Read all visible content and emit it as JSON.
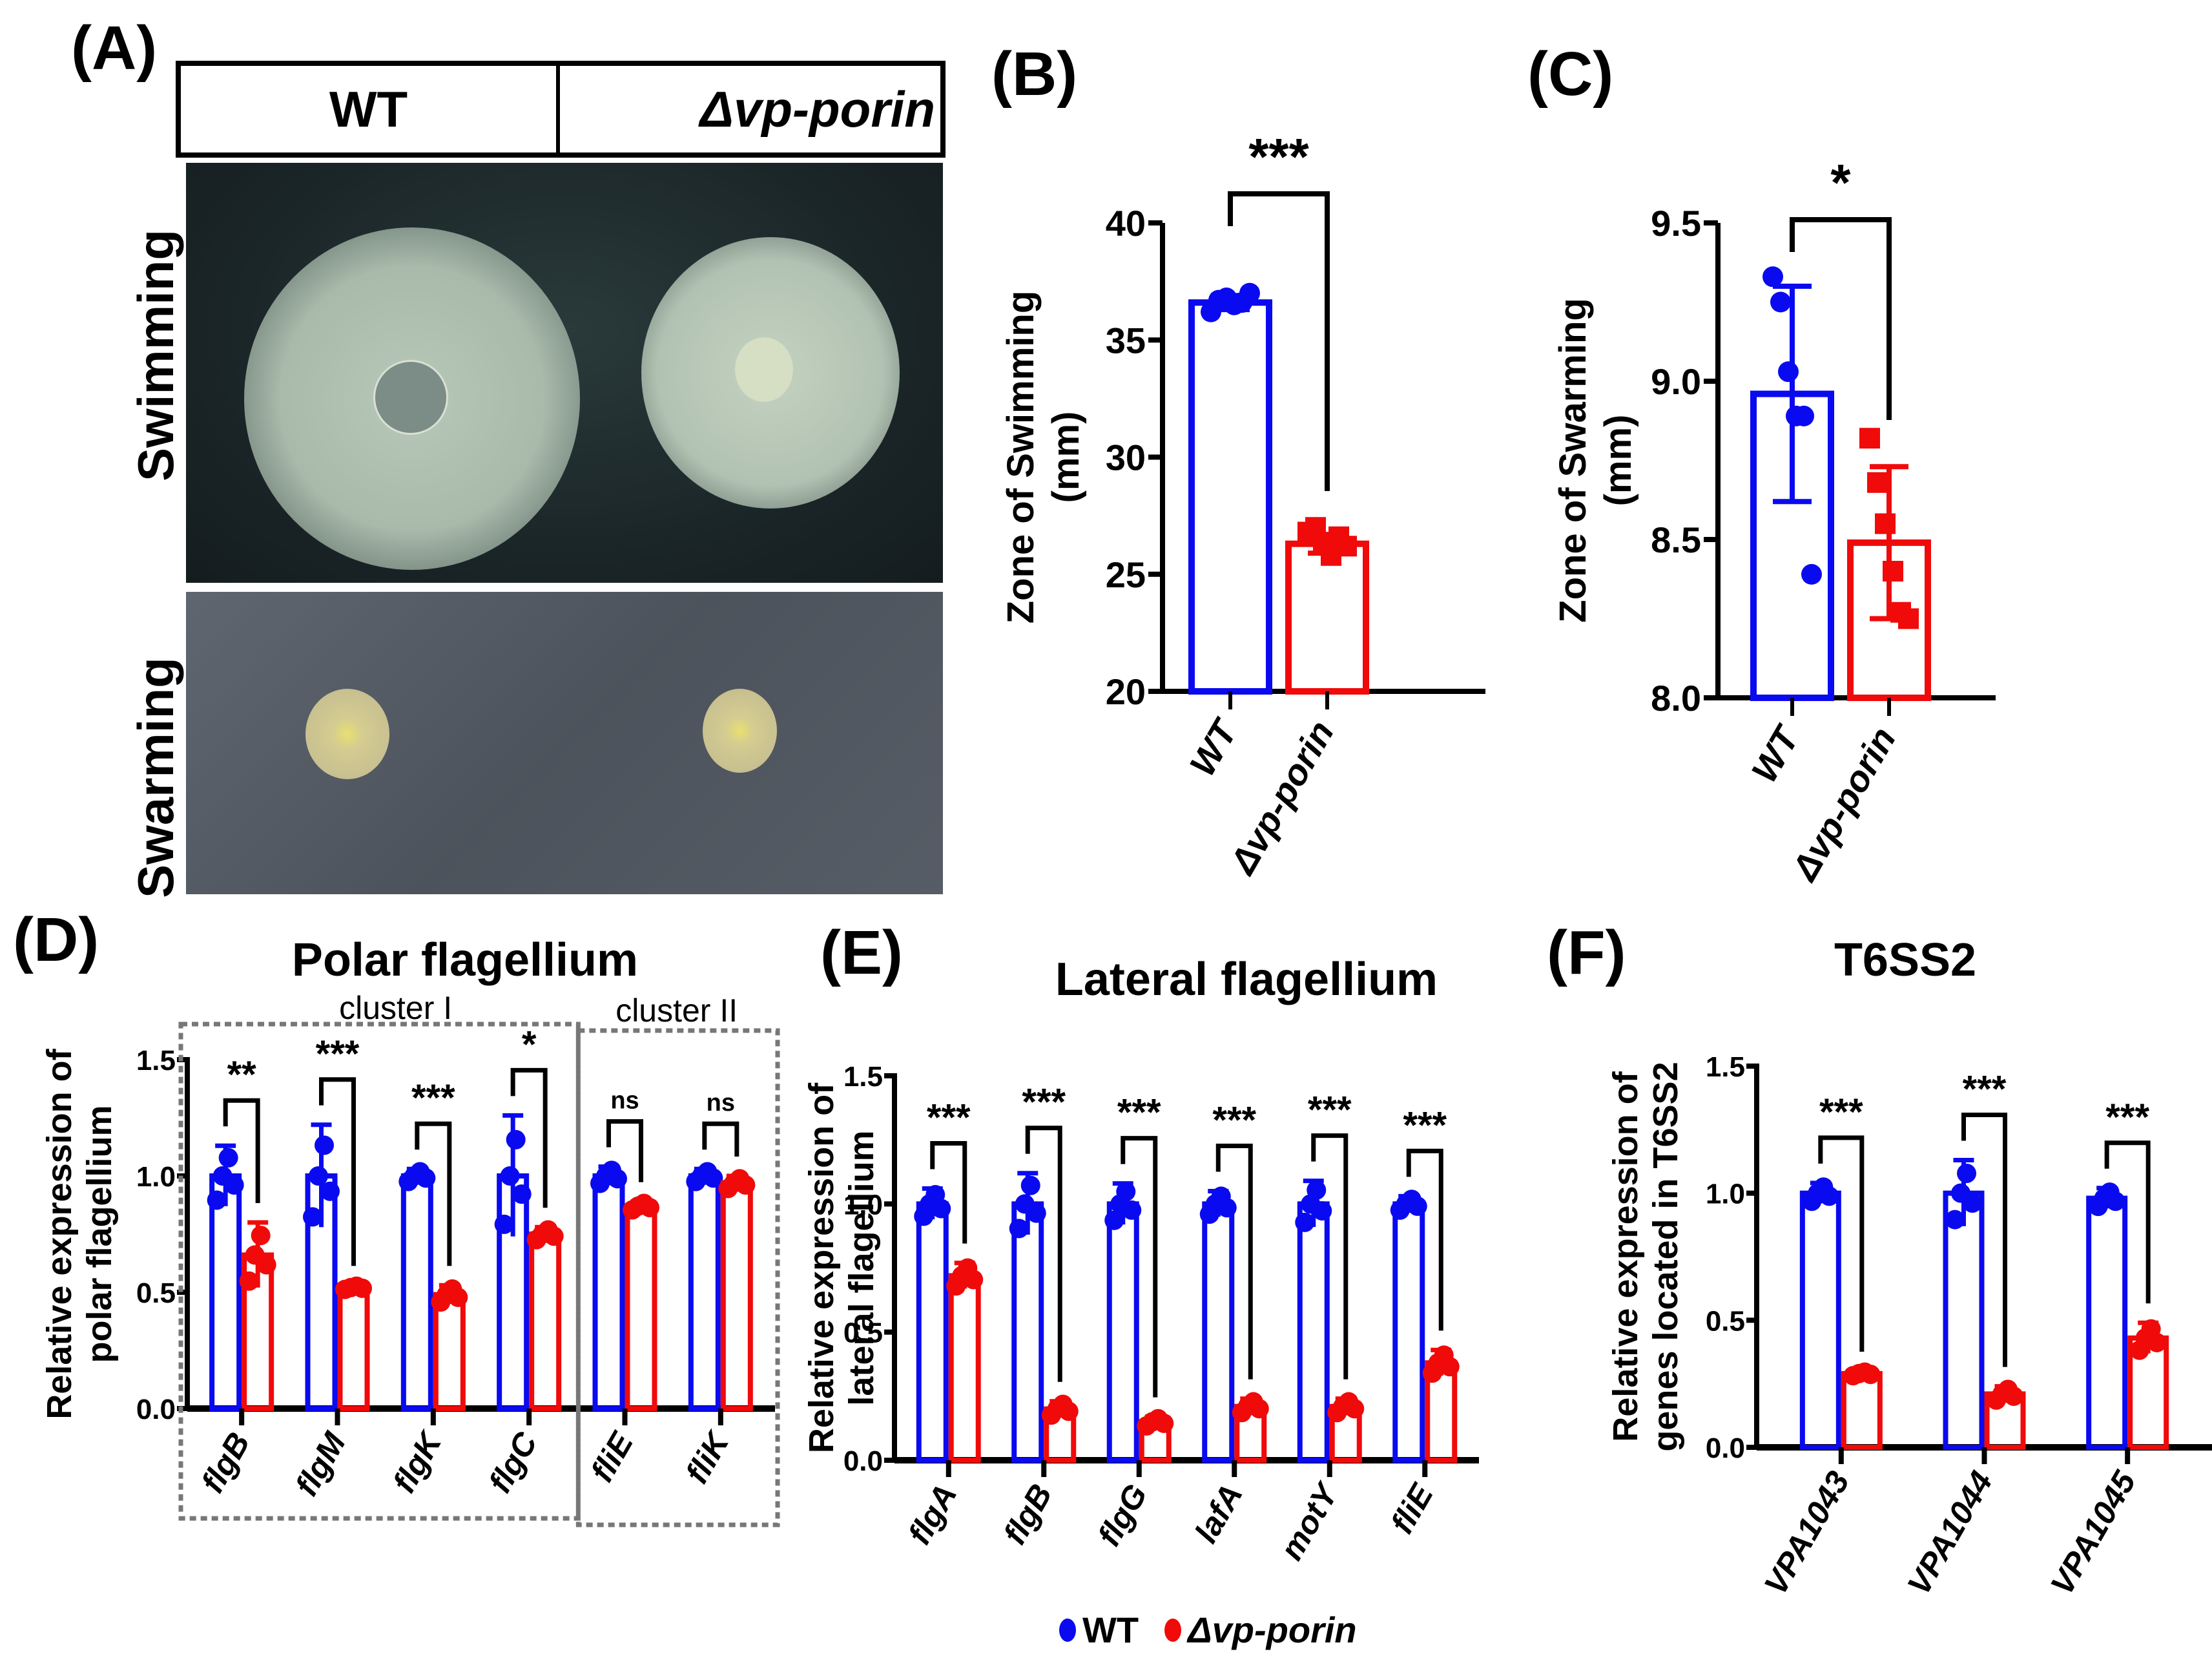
{
  "figure": {
    "colors": {
      "wt": "#0a0af0",
      "mutant": "#f00a0a",
      "axis": "#000000",
      "cluster_box": "#777777"
    },
    "legend": {
      "wt_label": "WT",
      "mutant_label": "Δvp-porin"
    }
  },
  "panel_a": {
    "label": "(A)",
    "columns": [
      "WT",
      "Δvp-porin"
    ],
    "rows": [
      "Swimming",
      "Swarming"
    ]
  },
  "panel_b": {
    "label": "(B)"
  },
  "panel_c": {
    "label": "(C)"
  },
  "panel_d": {
    "label": "(D)",
    "cluster_labels": [
      "cluster I",
      "cluster II"
    ]
  },
  "panel_e": {
    "label": "(E)"
  },
  "panel_f": {
    "label": "(F)"
  },
  "chart_data": [
    {
      "panel": "B",
      "type": "bar",
      "title": "",
      "categories": [
        "WT",
        "Δvp-porin"
      ],
      "series": [
        {
          "name": "Zone of Swimming",
          "values": [
            36.6,
            26.3
          ],
          "sd": [
            0.3,
            0.4
          ],
          "colors": [
            "#0a0af0",
            "#f00a0a"
          ]
        }
      ],
      "points": [
        [
          36.2,
          36.7,
          36.8,
          36.5,
          36.6,
          37.0
        ],
        [
          26.8,
          27.0,
          26.3,
          25.8,
          26.6,
          26.2
        ]
      ],
      "xlabel": "",
      "ylabel": "Zone of  Swimming (mm)",
      "ylim": [
        20,
        40
      ],
      "yticks": [
        20,
        25,
        30,
        35,
        40
      ],
      "significance": [
        "***"
      ],
      "grid": false
    },
    {
      "panel": "C",
      "type": "bar",
      "title": "",
      "categories": [
        "WT",
        "Δvp-porin"
      ],
      "series": [
        {
          "name": "Zone of Swarming",
          "values": [
            8.96,
            8.49
          ],
          "sd": [
            0.34,
            0.24
          ],
          "colors": [
            "#0a0af0",
            "#f00a0a"
          ]
        }
      ],
      "points": [
        [
          9.33,
          9.25,
          9.03,
          8.89,
          8.89,
          8.39
        ],
        [
          8.82,
          8.68,
          8.55,
          8.4,
          8.27,
          8.25
        ]
      ],
      "xlabel": "",
      "ylabel": "Zone of  Swarming (mm)",
      "ylim": [
        8.0,
        9.5
      ],
      "yticks": [
        8.0,
        8.5,
        9.0,
        9.5
      ],
      "significance": [
        "*"
      ],
      "grid": false
    },
    {
      "panel": "D",
      "type": "bar",
      "title": "Polar flagellium",
      "categories": [
        "flgB",
        "flgM",
        "flgK",
        "flgC",
        "fliE",
        "fliK"
      ],
      "series": [
        {
          "name": "WT",
          "values": [
            1.0,
            1.0,
            1.0,
            1.0,
            1.0,
            1.0
          ],
          "sd": [
            0.13,
            0.22,
            0.03,
            0.26,
            0.04,
            0.03
          ]
        },
        {
          "name": "Δvp-porin",
          "values": [
            0.66,
            0.52,
            0.49,
            0.75,
            0.87,
            0.97
          ],
          "sd": [
            0.14,
            0.01,
            0.04,
            0.03,
            0.02,
            0.03
          ]
        }
      ],
      "significance": [
        "**",
        "***",
        "***",
        "*",
        "ns",
        "ns"
      ],
      "clusters": [
        {
          "label": "cluster I",
          "genes": [
            "flgB",
            "flgM",
            "flgK",
            "flgC"
          ]
        },
        {
          "label": "cluster II",
          "genes": [
            "fliE",
            "fliK"
          ]
        }
      ],
      "xlabel": "",
      "ylabel": "Relative expression of polar flagellium",
      "ylim": [
        0,
        1.5
      ],
      "yticks": [
        0.0,
        0.5,
        1.0,
        1.5
      ],
      "grid": false
    },
    {
      "panel": "E",
      "type": "bar",
      "title": "Lateral flagellium",
      "categories": [
        "flgA",
        "flgB",
        "flgG",
        "lafA",
        "motY",
        "fliE"
      ],
      "series": [
        {
          "name": "WT",
          "values": [
            1.0,
            1.0,
            1.0,
            1.0,
            1.0,
            1.0
          ],
          "sd": [
            0.06,
            0.12,
            0.08,
            0.05,
            0.09,
            0.03
          ]
        },
        {
          "name": "Δvp-porin",
          "values": [
            0.72,
            0.2,
            0.15,
            0.21,
            0.21,
            0.38
          ],
          "sd": [
            0.05,
            0.03,
            0.02,
            0.03,
            0.03,
            0.05
          ]
        }
      ],
      "significance": [
        "***",
        "***",
        "***",
        "***",
        "***",
        "***"
      ],
      "xlabel": "",
      "ylabel": "Relative expression of lateral flagellium",
      "ylim": [
        0,
        1.5
      ],
      "yticks": [
        0.0,
        0.5,
        1.0,
        1.5
      ],
      "grid": false
    },
    {
      "panel": "F",
      "type": "bar",
      "title": "T6SS2",
      "categories": [
        "VPA1043",
        "VPA1044",
        "VPA1045"
      ],
      "series": [
        {
          "name": "WT",
          "values": [
            1.0,
            1.0,
            0.98
          ],
          "sd": [
            0.04,
            0.13,
            0.04
          ]
        },
        {
          "name": "Δvp-porin",
          "values": [
            0.29,
            0.21,
            0.43
          ],
          "sd": [
            0.01,
            0.03,
            0.06
          ]
        }
      ],
      "significance": [
        "***",
        "***",
        "***"
      ],
      "xlabel": "",
      "ylabel": "Relative expression of genes located in T6SS2",
      "ylim": [
        0,
        1.5
      ],
      "yticks": [
        0.0,
        0.5,
        1.0,
        1.5
      ],
      "grid": false
    }
  ]
}
